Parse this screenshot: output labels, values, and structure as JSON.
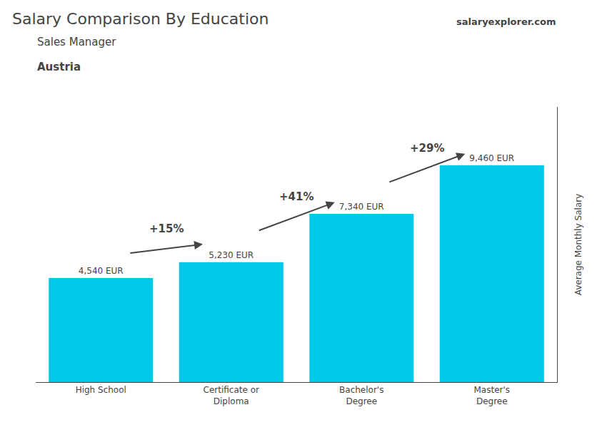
{
  "chart_data": {
    "type": "bar",
    "title": "Salary Comparison By Education",
    "subtitle": "Sales Manager",
    "ylabel": "Average Monthly Salary",
    "categories": [
      "High School",
      "Certificate or\nDiploma",
      "Bachelor's\nDegree",
      "Master's\nDegree"
    ],
    "values": [
      4540,
      5230,
      7340,
      9460
    ],
    "value_labels": [
      "4,540 EUR",
      "5,230 EUR",
      "7,340 EUR",
      "9,460 EUR"
    ],
    "data_labels": true,
    "color": "#00c8e8",
    "ylim": [
      0,
      12000
    ],
    "tick_labels": "x",
    "grid": false,
    "annotations": [
      {
        "text": "+15%",
        "from": "High School",
        "to": "Certificate or\nDiploma"
      },
      {
        "text": "+41%",
        "from": "Certificate or\nDiploma",
        "to": "Bachelor's\nDegree"
      },
      {
        "text": "+29%",
        "from": "Bachelor's\nDegree",
        "to": "Master's\nDegree"
      },
      {
        "text": "Austria"
      },
      {
        "text": "salaryexplorer.com"
      }
    ]
  }
}
